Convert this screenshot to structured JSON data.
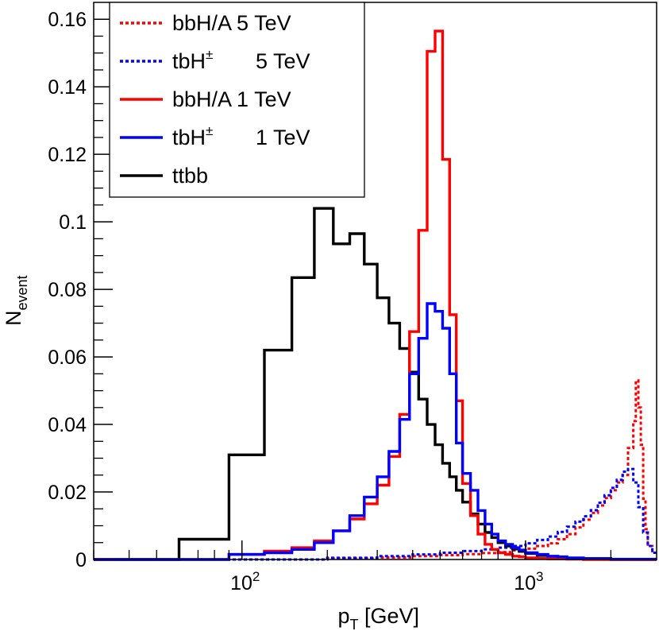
{
  "chart_data": {
    "type": "line",
    "title": "",
    "xlabel": {
      "main": "p",
      "sub": "T",
      "rest": " [GeV]"
    },
    "ylabel": {
      "main": "N",
      "sub": "event"
    },
    "xscale": "log",
    "xlim": [
      30,
      2900
    ],
    "ylim": [
      0,
      0.165
    ],
    "x_ticks": [
      {
        "value": 100,
        "base": "10",
        "exp": "2"
      },
      {
        "value": 1000,
        "base": "10",
        "exp": "3"
      }
    ],
    "y_ticks": [
      {
        "value": 0,
        "label": "0"
      },
      {
        "value": 0.02,
        "label": "0.02"
      },
      {
        "value": 0.04,
        "label": "0.04"
      },
      {
        "value": 0.06,
        "label": "0.06"
      },
      {
        "value": 0.08,
        "label": "0.08"
      },
      {
        "value": 0.1,
        "label": "0.1"
      },
      {
        "value": 0.12,
        "label": "0.12"
      },
      {
        "value": 0.14,
        "label": "0.14"
      },
      {
        "value": 0.16,
        "label": "0.16"
      }
    ],
    "legend_position": "top-left",
    "series": [
      {
        "name": "ttbb",
        "legend": {
          "main": "ttbb",
          "sup": "",
          "tail": ""
        },
        "color": "#000000",
        "dashed": false,
        "bin_edges": [
          30,
          60,
          90,
          120,
          150,
          180,
          210,
          240,
          270,
          300,
          330,
          360,
          390,
          420,
          450,
          480,
          510,
          540,
          570,
          600,
          640,
          680,
          720,
          760,
          800,
          850,
          900,
          950,
          1000,
          1100,
          1200,
          1300,
          1400,
          1600,
          1800,
          2000,
          2900
        ],
        "values": [
          0.0,
          0.006,
          0.031,
          0.062,
          0.0835,
          0.104,
          0.0935,
          0.0965,
          0.0875,
          0.0775,
          0.07,
          0.0625,
          0.0555,
          0.0475,
          0.04,
          0.034,
          0.0285,
          0.0245,
          0.0205,
          0.017,
          0.0135,
          0.0105,
          0.008,
          0.0065,
          0.005,
          0.004,
          0.0031,
          0.0024,
          0.0018,
          0.0012,
          0.0008,
          0.0005,
          0.0003,
          0.0002,
          0.0001,
          0.0
        ]
      },
      {
        "name": "bbH/A 1 TeV",
        "legend": {
          "main": "bbH/A 1 TeV",
          "sup": "",
          "tail": ""
        },
        "color": "#ff0000",
        "dashed": false,
        "bin_edges": [
          30,
          90,
          120,
          150,
          180,
          210,
          240,
          270,
          300,
          330,
          360,
          390,
          420,
          450,
          480,
          510,
          540,
          570,
          600,
          640,
          680,
          720,
          760,
          800,
          850,
          900,
          950,
          1000,
          1100,
          1200,
          1400,
          1600,
          2900
        ],
        "values": [
          0.0,
          0.0015,
          0.0025,
          0.0035,
          0.0055,
          0.0085,
          0.012,
          0.0165,
          0.022,
          0.0305,
          0.043,
          0.0675,
          0.0975,
          0.1505,
          0.1565,
          0.1185,
          0.0725,
          0.047,
          0.0225,
          0.013,
          0.0075,
          0.0045,
          0.003,
          0.002,
          0.0015,
          0.001,
          0.0008,
          0.0005,
          0.0003,
          0.0002,
          0.0001,
          0.0
        ]
      },
      {
        "name": "tbH± 1 TeV",
        "legend": {
          "main": "tbH",
          "sup": "±",
          "tail": "1 TeV"
        },
        "color": "#0000ff",
        "dashed": false,
        "bin_edges": [
          30,
          90,
          120,
          150,
          180,
          210,
          240,
          270,
          300,
          330,
          360,
          390,
          420,
          450,
          480,
          510,
          540,
          570,
          600,
          640,
          680,
          720,
          760,
          800,
          850,
          900,
          950,
          1000,
          1100,
          1200,
          1300,
          1400,
          1600,
          2000,
          2900
        ],
        "values": [
          0.0,
          0.0015,
          0.002,
          0.003,
          0.005,
          0.0085,
          0.013,
          0.0185,
          0.0245,
          0.032,
          0.0415,
          0.055,
          0.0655,
          0.0758,
          0.0735,
          0.0685,
          0.055,
          0.0345,
          0.0255,
          0.0205,
          0.0145,
          0.0105,
          0.0075,
          0.0055,
          0.0045,
          0.0035,
          0.0028,
          0.002,
          0.0015,
          0.001,
          0.0008,
          0.0005,
          0.0003,
          0.0001
        ]
      },
      {
        "name": "bbH/A 5 TeV",
        "legend": {
          "main": "bbH/A 5 TeV",
          "sup": "",
          "tail": ""
        },
        "color": "#ff0000",
        "dashed": true,
        "bin_edges": [
          30,
          200,
          300,
          400,
          500,
          600,
          700,
          800,
          900,
          1000,
          1100,
          1200,
          1300,
          1400,
          1500,
          1600,
          1700,
          1800,
          1900,
          2000,
          2100,
          2200,
          2300,
          2400,
          2450,
          2500,
          2550,
          2600,
          2650,
          2700,
          2800,
          2900
        ],
        "values": [
          0.0,
          0.0003,
          0.0006,
          0.001,
          0.0013,
          0.0016,
          0.0019,
          0.0022,
          0.0027,
          0.0032,
          0.004,
          0.0048,
          0.006,
          0.0075,
          0.0095,
          0.0118,
          0.0138,
          0.016,
          0.0182,
          0.0205,
          0.0228,
          0.025,
          0.033,
          0.041,
          0.053,
          0.045,
          0.034,
          0.018,
          0.009,
          0.004,
          0.002
        ]
      },
      {
        "name": "tbH± 5 TeV",
        "legend": {
          "main": "tbH",
          "sup": "±",
          "tail": "5 TeV"
        },
        "color": "#0000ff",
        "dashed": true,
        "bin_edges": [
          30,
          200,
          300,
          400,
          500,
          600,
          700,
          800,
          900,
          1000,
          1100,
          1200,
          1300,
          1400,
          1500,
          1600,
          1700,
          1800,
          1900,
          2000,
          2100,
          2200,
          2300,
          2400,
          2500,
          2600,
          2700,
          2800,
          2900
        ],
        "values": [
          0.0,
          0.0005,
          0.001,
          0.0015,
          0.002,
          0.0025,
          0.003,
          0.0035,
          0.004,
          0.0048,
          0.0058,
          0.0068,
          0.0082,
          0.0097,
          0.0112,
          0.0128,
          0.0146,
          0.0168,
          0.019,
          0.0212,
          0.0236,
          0.026,
          0.0268,
          0.0228,
          0.0155,
          0.008,
          0.004,
          0.002
        ]
      }
    ],
    "legend_order": [
      "bbH/A 5 TeV",
      "tbH± 5 TeV",
      "bbH/A 1 TeV",
      "tbH± 1 TeV",
      "ttbb"
    ]
  }
}
